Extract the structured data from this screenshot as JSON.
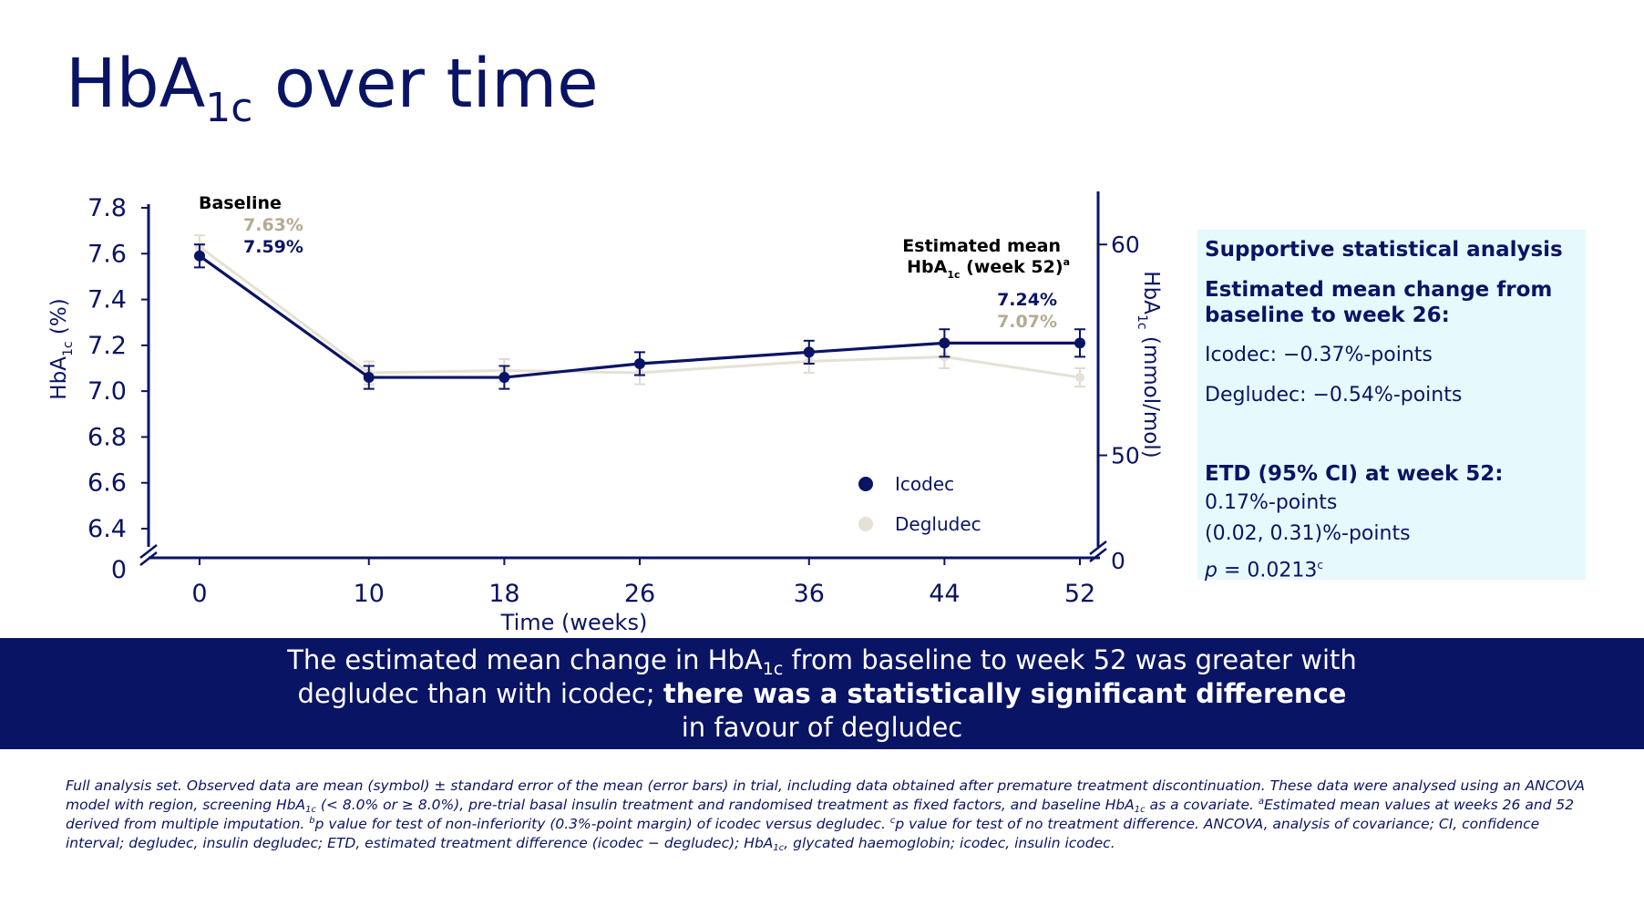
{
  "title": {
    "main": "HbA",
    "sub": "1c",
    "rest": " over time"
  },
  "chart_data": {
    "type": "line",
    "x": [
      0,
      10,
      18,
      26,
      36,
      44,
      52
    ],
    "xticks": [
      "0",
      "10",
      "18",
      "26",
      "36",
      "44",
      "52"
    ],
    "xlabel": "Time (weeks)",
    "ylabel_left": {
      "main": "HbA",
      "sub": "1c",
      "rest": " (%)"
    },
    "ylabel_right": {
      "main": "HbA",
      "sub": "1c",
      "rest": " (mmol/mol)"
    },
    "ylim": [
      6.4,
      7.8
    ],
    "yticks": [
      "7.8",
      "7.6",
      "7.4",
      "7.2",
      "7.0",
      "6.8",
      "6.6",
      "6.4"
    ],
    "y_axis_break_label": "0",
    "right_axis_ticks": [
      {
        "label": "60",
        "value_pct": 7.64
      },
      {
        "label": "50",
        "value_pct": 6.72
      }
    ],
    "right_axis_break_label": "0",
    "series": [
      {
        "name": "Icodec",
        "color": "#0a1464",
        "values": [
          7.59,
          7.06,
          7.06,
          7.12,
          7.17,
          7.21,
          7.21
        ],
        "errors": [
          0.05,
          0.05,
          0.05,
          0.05,
          0.05,
          0.06,
          0.06
        ]
      },
      {
        "name": "Degludec",
        "color": "#e8e4da",
        "values": [
          7.63,
          7.08,
          7.09,
          7.08,
          7.13,
          7.15,
          7.06
        ],
        "errors": [
          0.05,
          0.05,
          0.05,
          0.05,
          0.05,
          0.05,
          0.04
        ]
      }
    ],
    "annotations": {
      "baseline_label": "Baseline",
      "baseline_degludec": "7.63%",
      "baseline_icodec": "7.59%",
      "week52_label_line1": "Estimated mean",
      "week52_label_line2_main": "HbA",
      "week52_label_line2_sub": "1c",
      "week52_label_line2_rest": " (week 52)",
      "week52_label_sup": "a",
      "week52_icodec": "7.24%",
      "week52_degludec": "7.07%"
    },
    "legend_position": "bottom-right"
  },
  "stats": {
    "heading": "Supportive statistical analysis",
    "change_heading_1": "Estimated mean change from",
    "change_heading_2": "baseline to week 26:",
    "icodec_change": "Icodec: −0.37%-points",
    "degludec_change": "Degludec: −0.54%-points",
    "etd_heading": "ETD (95% CI) at week 52:",
    "etd_value": "0.17%-points",
    "etd_ci": "(0.02, 0.31)%-points",
    "p_label": "p",
    "p_value": " = 0.0213",
    "p_sup": "c"
  },
  "banner": {
    "line1_a": "The estimated mean change in HbA",
    "line1_sub": "1c",
    "line1_b": " from baseline to week 52 was greater with",
    "line2_a": "degludec than with icodec; ",
    "line2_bold": "there was a statistically significant difference",
    "line3": "in favour of degludec"
  },
  "footnote": {
    "p1": "Full analysis set. Observed data are mean (symbol) ± standard error of the mean (error bars) in trial, including data obtained after premature treatment discontinuation. These data were analysed using an ANCOVA model with region, screening HbA",
    "sub1": "1c",
    "p2": " (< 8.0% or ≥ 8.0%), pre-trial basal insulin treatment and randomised treatment as fixed factors, and baseline HbA",
    "sub2": "1c",
    "p3": " as a covariate. ",
    "sup_a": "a",
    "p4": "Estimated mean values at weeks 26 and 52 derived from multiple imputation. ",
    "sup_b": "b",
    "p5": "p value for test of non-inferiority (0.3%-point margin) of icodec versus degludec. ",
    "sup_c": "c",
    "p6": "p value for test of no treatment difference. ANCOVA, analysis of covariance; CI, confidence interval; degludec, insulin degludec; ETD, estimated treatment difference (icodec − degludec); HbA",
    "sub3": "1c",
    "p7": ", glycated haemoglobin; icodec, insulin icodec."
  }
}
